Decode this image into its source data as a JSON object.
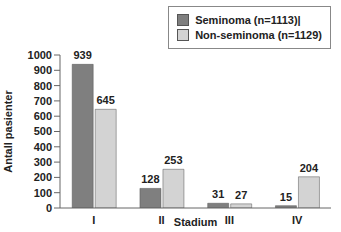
{
  "chart_data": {
    "type": "bar",
    "x_label": "Stadium",
    "y_label": "Antall pasienter",
    "categories": [
      "I",
      "II",
      "III",
      "IV"
    ],
    "series": [
      {
        "name": "Seminoma (n=1113)|",
        "color": "#7f7f7f",
        "values": [
          939,
          128,
          31,
          15
        ]
      },
      {
        "name": "Non-seminoma (n=1129)",
        "color": "#d3d3d3",
        "values": [
          645,
          253,
          27,
          204
        ]
      }
    ],
    "ylim": [
      0,
      1000
    ],
    "yticks": [
      0,
      100,
      200,
      300,
      400,
      500,
      600,
      700,
      800,
      900,
      1000
    ],
    "data_labels": true,
    "legend": "upper right",
    "grid": false
  }
}
